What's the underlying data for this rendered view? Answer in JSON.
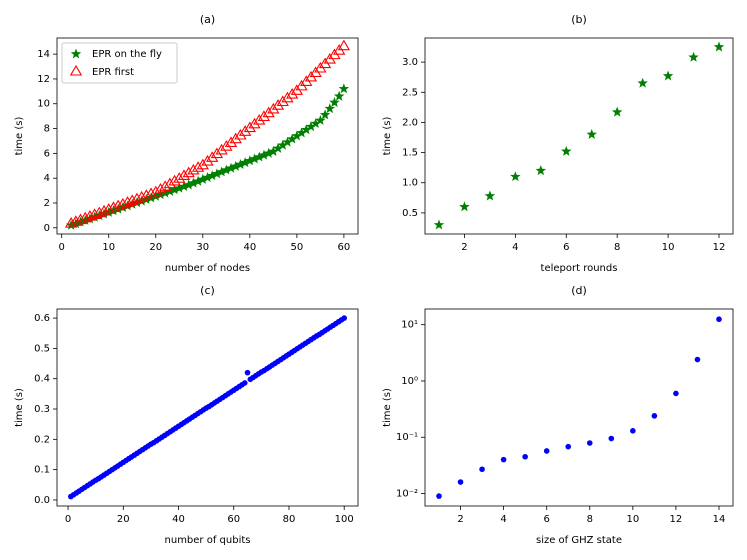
{
  "chart_data": [
    {
      "type": "scatter",
      "title": "(a)",
      "xlabel": "number of nodes",
      "ylabel": "time (s)",
      "x": [
        2,
        3,
        4,
        5,
        6,
        7,
        8,
        9,
        10,
        11,
        12,
        13,
        14,
        15,
        16,
        17,
        18,
        19,
        20,
        21,
        22,
        23,
        24,
        25,
        26,
        27,
        28,
        29,
        30,
        31,
        32,
        33,
        34,
        35,
        36,
        37,
        38,
        39,
        40,
        41,
        42,
        43,
        44,
        45,
        46,
        47,
        48,
        49,
        50,
        51,
        52,
        53,
        54,
        55,
        56,
        57,
        58,
        59,
        60
      ],
      "series": [
        {
          "name": "EPR on the fly",
          "color": "#008000",
          "marker": "star",
          "values": [
            0.2,
            0.33,
            0.46,
            0.59,
            0.72,
            0.85,
            0.98,
            1.11,
            1.24,
            1.37,
            1.5,
            1.63,
            1.76,
            1.89,
            2.02,
            2.15,
            2.28,
            2.41,
            2.54,
            2.67,
            2.8,
            2.93,
            3.06,
            3.19,
            3.32,
            3.45,
            3.6,
            3.75,
            3.9,
            4.05,
            4.2,
            4.35,
            4.5,
            4.65,
            4.8,
            4.95,
            5.1,
            5.25,
            5.4,
            5.55,
            5.7,
            5.85,
            6.0,
            6.15,
            6.4,
            6.65,
            6.9,
            7.15,
            7.4,
            7.65,
            7.9,
            8.15,
            8.4,
            8.65,
            9.1,
            9.6,
            10.1,
            10.6,
            11.2
          ]
        },
        {
          "name": "EPR first",
          "color": "#ff0000",
          "marker": "triangle",
          "values": [
            0.3,
            0.44,
            0.58,
            0.72,
            0.86,
            1.0,
            1.14,
            1.28,
            1.42,
            1.56,
            1.7,
            1.84,
            1.98,
            2.12,
            2.26,
            2.4,
            2.54,
            2.68,
            2.82,
            3.04,
            3.26,
            3.48,
            3.7,
            3.92,
            4.14,
            4.36,
            4.58,
            4.8,
            5.0,
            5.3,
            5.6,
            5.9,
            6.2,
            6.5,
            6.8,
            7.1,
            7.4,
            7.7,
            8.0,
            8.3,
            8.6,
            8.9,
            9.2,
            9.5,
            9.8,
            10.1,
            10.4,
            10.7,
            11.0,
            11.36,
            11.72,
            12.08,
            12.44,
            12.8,
            13.16,
            13.52,
            13.88,
            14.24,
            14.6
          ]
        }
      ],
      "xlim": [
        -1,
        63
      ],
      "xticks": [
        0,
        10,
        20,
        30,
        40,
        50,
        60
      ],
      "ylim": [
        -0.5,
        15.3
      ],
      "yticks": [
        0,
        2,
        4,
        6,
        8,
        10,
        12,
        14
      ],
      "legend": "upper left"
    },
    {
      "type": "scatter",
      "title": "(b)",
      "xlabel": "teleport rounds",
      "ylabel": "time (s)",
      "x": [
        1,
        2,
        3,
        4,
        5,
        6,
        7,
        8,
        9,
        10,
        11,
        12
      ],
      "values": [
        0.3,
        0.6,
        0.78,
        1.1,
        1.2,
        1.52,
        1.8,
        2.17,
        2.65,
        2.77,
        3.08,
        3.25
      ],
      "color": "#008000",
      "marker": "star",
      "xlim": [
        0.45,
        12.55
      ],
      "xticks": [
        2,
        4,
        6,
        8,
        10,
        12
      ],
      "ylim": [
        0.15,
        3.4
      ],
      "yticks": [
        {
          "value": 0.5,
          "label": "0.5"
        },
        {
          "value": 1,
          "label": "1.0"
        },
        {
          "value": 1.5,
          "label": "1.5"
        },
        {
          "value": 2,
          "label": "2.0"
        },
        {
          "value": 2.5,
          "label": "2.5"
        },
        {
          "value": 3,
          "label": "3.0"
        }
      ]
    },
    {
      "type": "scatter",
      "title": "(c)",
      "xlabel": "number of qubits",
      "ylabel": "time (s)",
      "x": [
        1,
        2,
        3,
        4,
        5,
        6,
        7,
        8,
        9,
        10,
        11,
        12,
        13,
        14,
        15,
        16,
        17,
        18,
        19,
        20,
        21,
        22,
        23,
        24,
        25,
        26,
        27,
        28,
        29,
        30,
        31,
        32,
        33,
        34,
        35,
        36,
        37,
        38,
        39,
        40,
        41,
        42,
        43,
        44,
        45,
        46,
        47,
        48,
        49,
        50,
        51,
        52,
        53,
        54,
        55,
        56,
        57,
        58,
        59,
        60,
        61,
        62,
        63,
        64,
        65,
        66,
        67,
        68,
        69,
        70,
        71,
        72,
        73,
        74,
        75,
        76,
        77,
        78,
        79,
        80,
        81,
        82,
        83,
        84,
        85,
        86,
        87,
        88,
        89,
        90,
        91,
        92,
        93,
        94,
        95,
        96,
        97,
        98,
        99,
        100
      ],
      "values": [
        0.011,
        0.017,
        0.023,
        0.029,
        0.035,
        0.041,
        0.047,
        0.053,
        0.059,
        0.065,
        0.07,
        0.076,
        0.082,
        0.088,
        0.094,
        0.1,
        0.106,
        0.112,
        0.118,
        0.124,
        0.13,
        0.136,
        0.142,
        0.148,
        0.154,
        0.16,
        0.166,
        0.172,
        0.178,
        0.184,
        0.189,
        0.195,
        0.201,
        0.207,
        0.213,
        0.219,
        0.225,
        0.231,
        0.237,
        0.243,
        0.249,
        0.255,
        0.261,
        0.267,
        0.273,
        0.279,
        0.285,
        0.291,
        0.297,
        0.303,
        0.308,
        0.314,
        0.32,
        0.326,
        0.332,
        0.338,
        0.344,
        0.35,
        0.356,
        0.362,
        0.368,
        0.374,
        0.38,
        0.386,
        0.42,
        0.398,
        0.404,
        0.41,
        0.416,
        0.422,
        0.427,
        0.433,
        0.439,
        0.445,
        0.451,
        0.457,
        0.463,
        0.469,
        0.475,
        0.481,
        0.487,
        0.493,
        0.499,
        0.505,
        0.511,
        0.517,
        0.523,
        0.529,
        0.535,
        0.541,
        0.546,
        0.552,
        0.558,
        0.564,
        0.57,
        0.576,
        0.582,
        0.588,
        0.594,
        0.6
      ],
      "color": "#0000ff",
      "marker": "circle",
      "xlim": [
        -4,
        105
      ],
      "xticks": [
        0,
        20,
        40,
        60,
        80,
        100
      ],
      "ylim": [
        -0.02,
        0.63
      ],
      "yticks": [
        {
          "value": 0,
          "label": "0.0"
        },
        {
          "value": 0.1,
          "label": "0.1"
        },
        {
          "value": 0.2,
          "label": "0.2"
        },
        {
          "value": 0.3,
          "label": "0.3"
        },
        {
          "value": 0.4,
          "label": "0.4"
        },
        {
          "value": 0.5,
          "label": "0.5"
        },
        {
          "value": 0.6,
          "label": "0.6"
        }
      ]
    },
    {
      "type": "scatter",
      "title": "(d)",
      "xlabel": "size of GHZ state",
      "ylabel": "time (s)",
      "x": [
        1,
        2,
        3,
        4,
        5,
        6,
        7,
        8,
        9,
        10,
        11,
        12,
        13,
        14
      ],
      "values": [
        0.009,
        0.016,
        0.027,
        0.04,
        0.045,
        0.057,
        0.068,
        0.079,
        0.095,
        0.13,
        0.24,
        0.6,
        2.4,
        12.5
      ],
      "color": "#0000ff",
      "marker": "circle",
      "yscale": "log",
      "xlim": [
        0.35,
        14.65
      ],
      "xticks": [
        2,
        4,
        6,
        8,
        10,
        12,
        14
      ],
      "ylim": [
        0.006,
        19
      ],
      "yticks": [
        {
          "value": 0.01,
          "label": "10⁻²"
        },
        {
          "value": 0.1,
          "label": "10⁻¹"
        },
        {
          "value": 1,
          "label": "10⁰"
        },
        {
          "value": 10,
          "label": "10¹"
        }
      ]
    }
  ]
}
